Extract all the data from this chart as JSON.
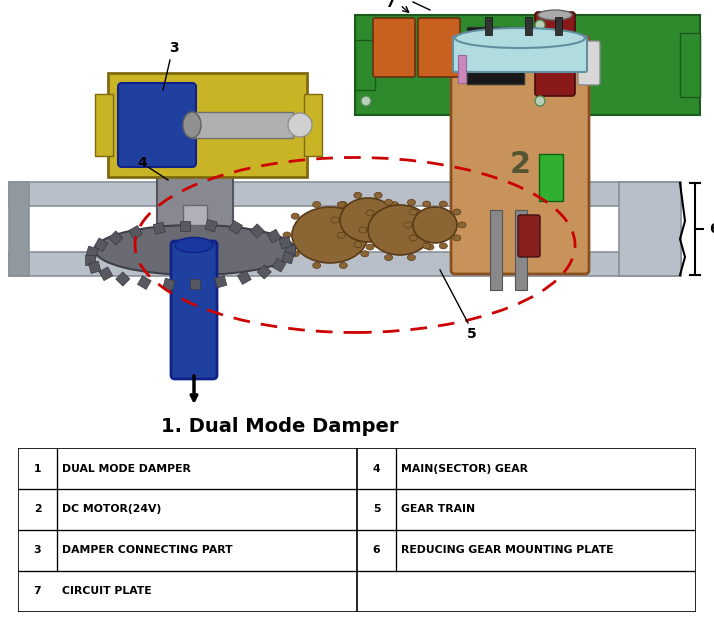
{
  "title": "1. Dual Mode Damper",
  "bg_color": "#ffffff",
  "table": {
    "rows": [
      [
        "1",
        "DUAL MODE DAMPER",
        "4",
        "MAIN(SECTOR) GEAR"
      ],
      [
        "2",
        "DC MOTOR(24V)",
        "5",
        "GEAR TRAIN"
      ],
      [
        "3",
        "DAMPER CONNECTING PART",
        "6",
        "REDUCING GEAR MOUNTING PLATE"
      ],
      [
        "7",
        "CIRCUIT PLATE",
        "",
        ""
      ]
    ]
  },
  "colors": {
    "pcb_green": "#2d8a2d",
    "motor_copper": "#c8935a",
    "motor_top": "#b0dce0",
    "yellow_bracket": "#c8b424",
    "blue_part": "#2040a0",
    "gear_gray": "#7a7a82",
    "gear_brown": "#8b6533",
    "rail_silver": "#b8bfc8",
    "rail_dark": "#8a9098",
    "dashed_red": "#cc0000",
    "arrow_black": "#111111"
  }
}
